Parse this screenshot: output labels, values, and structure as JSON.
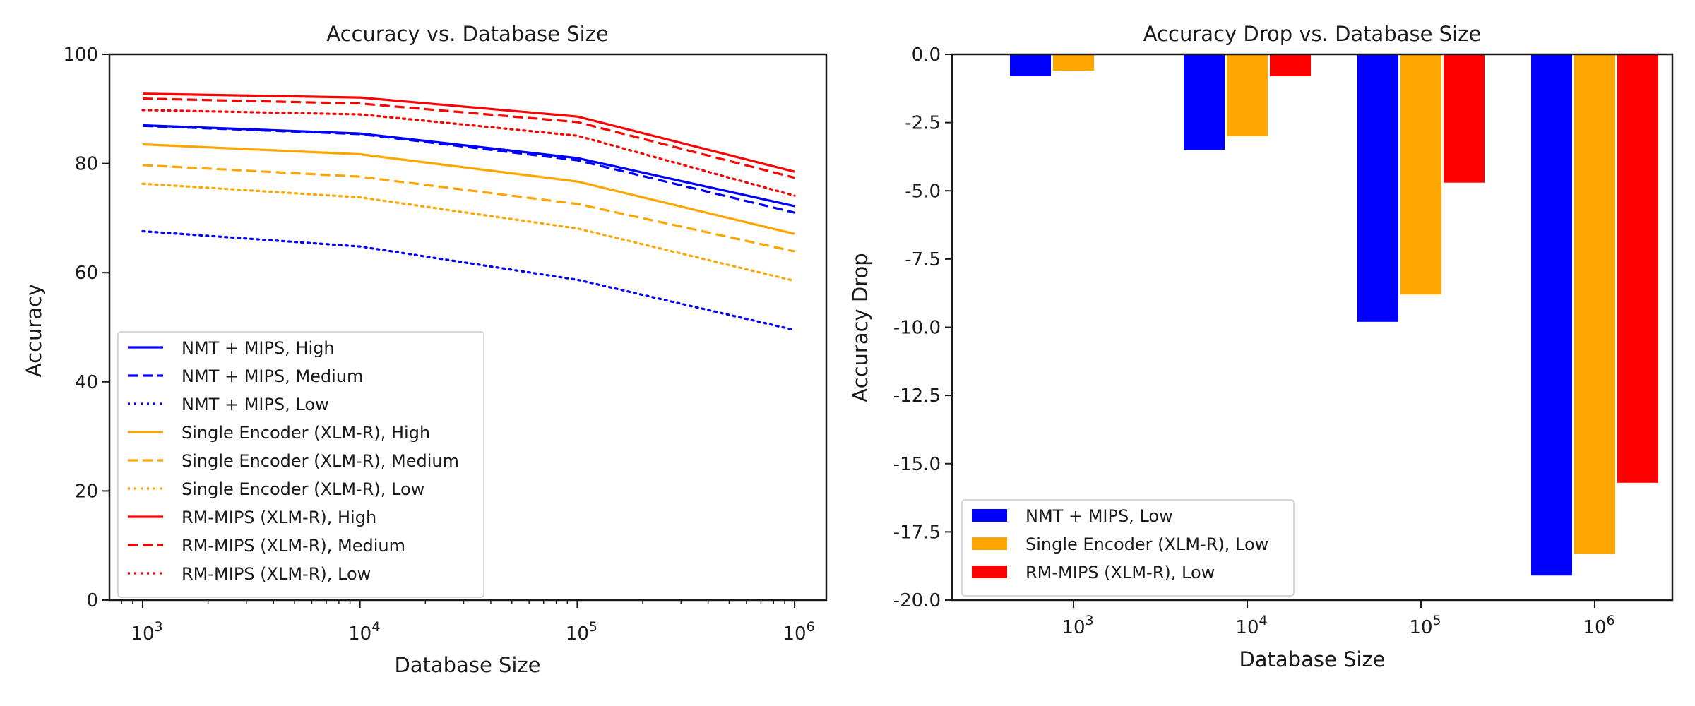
{
  "chart_data": [
    {
      "type": "line",
      "title": "Accuracy vs. Database Size",
      "xlabel": "Database Size",
      "ylabel": "Accuracy",
      "xscale": "log",
      "x": [
        1000,
        10000,
        100000,
        1000000
      ],
      "x_tick_labels": [
        {
          "base": "10",
          "exp": "3"
        },
        {
          "base": "10",
          "exp": "4"
        },
        {
          "base": "10",
          "exp": "5"
        },
        {
          "base": "10",
          "exp": "6"
        }
      ],
      "ylim": [
        0,
        100
      ],
      "y_ticks": [
        "0",
        "20",
        "40",
        "60",
        "80",
        "100"
      ],
      "legend_position": "lower-left",
      "series": [
        {
          "name": "NMT + MIPS, High",
          "color": "#0000ff",
          "style": "solid",
          "values": [
            87.0,
            85.5,
            81.0,
            72.2
          ]
        },
        {
          "name": "NMT + MIPS, Medium",
          "color": "#0000ff",
          "style": "dashed",
          "values": [
            86.9,
            85.4,
            80.6,
            71.0
          ]
        },
        {
          "name": "NMT + MIPS, Low",
          "color": "#0000ff",
          "style": "dotted",
          "values": [
            67.6,
            64.8,
            58.7,
            49.5
          ]
        },
        {
          "name": "Single Encoder (XLM-R), High",
          "color": "#ffa500",
          "style": "solid",
          "values": [
            83.5,
            81.7,
            76.7,
            67.1
          ]
        },
        {
          "name": "Single Encoder (XLM-R), Medium",
          "color": "#ffa500",
          "style": "dashed",
          "values": [
            79.7,
            77.6,
            72.6,
            63.9
          ]
        },
        {
          "name": "Single Encoder (XLM-R), Low",
          "color": "#ffa500",
          "style": "dotted",
          "values": [
            76.3,
            73.8,
            68.1,
            58.5
          ]
        },
        {
          "name": "RM-MIPS (XLM-R), High",
          "color": "#ff0000",
          "style": "solid",
          "values": [
            92.8,
            92.1,
            88.6,
            78.5
          ]
        },
        {
          "name": "RM-MIPS (XLM-R), Medium",
          "color": "#ff0000",
          "style": "dashed",
          "values": [
            91.9,
            91.0,
            87.6,
            77.4
          ]
        },
        {
          "name": "RM-MIPS (XLM-R), Low",
          "color": "#ff0000",
          "style": "dotted",
          "values": [
            89.8,
            89.0,
            85.1,
            74.1
          ]
        }
      ]
    },
    {
      "type": "bar",
      "title": "Accuracy Drop vs. Database Size",
      "xlabel": "Database Size",
      "ylabel": "Accuracy Drop",
      "categories": [
        {
          "base": "10",
          "exp": "3"
        },
        {
          "base": "10",
          "exp": "4"
        },
        {
          "base": "10",
          "exp": "5"
        },
        {
          "base": "10",
          "exp": "6"
        }
      ],
      "ylim": [
        -20.0,
        0.0
      ],
      "y_ticks": [
        "0.0",
        "-2.5",
        "-5.0",
        "-7.5",
        "-10.0",
        "-12.5",
        "-15.0",
        "-17.5",
        "-20.0"
      ],
      "legend_position": "lower-left",
      "series": [
        {
          "name": "NMT + MIPS, Low",
          "color": "#0000ff",
          "values": [
            -0.8,
            -3.5,
            -9.8,
            -19.1
          ]
        },
        {
          "name": "Single Encoder (XLM-R), Low",
          "color": "#ffa500",
          "values": [
            -0.6,
            -3.0,
            -8.8,
            -18.3
          ]
        },
        {
          "name": "RM-MIPS (XLM-R), Low",
          "color": "#ff0000",
          "values": [
            0.0,
            -0.8,
            -4.7,
            -15.7
          ]
        }
      ]
    }
  ]
}
